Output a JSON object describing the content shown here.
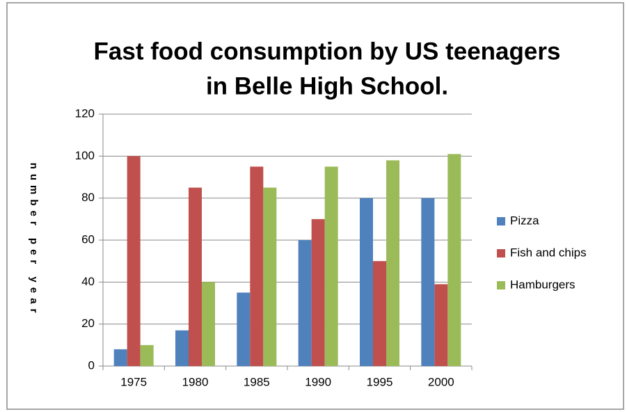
{
  "chart_data": {
    "type": "bar",
    "title": [
      "Fast food consumption by US teenagers",
      "in Belle High School."
    ],
    "y_label": "number per year",
    "categories": [
      "1975",
      "1980",
      "1985",
      "1990",
      "1995",
      "2000"
    ],
    "series": [
      {
        "name": "Pizza",
        "color": "#4f81bd",
        "values": [
          8,
          17,
          35,
          60,
          80,
          80
        ]
      },
      {
        "name": "Fish and chips",
        "color": "#c0504d",
        "values": [
          100,
          85,
          95,
          70,
          50,
          39
        ]
      },
      {
        "name": "Hamburgers",
        "color": "#9bbb59",
        "values": [
          10,
          40,
          85,
          95,
          98,
          101
        ]
      }
    ],
    "ylim": [
      0,
      120
    ],
    "yticks": [
      0,
      20,
      40,
      60,
      80,
      100,
      120
    ],
    "grid": true,
    "legend": "right"
  }
}
